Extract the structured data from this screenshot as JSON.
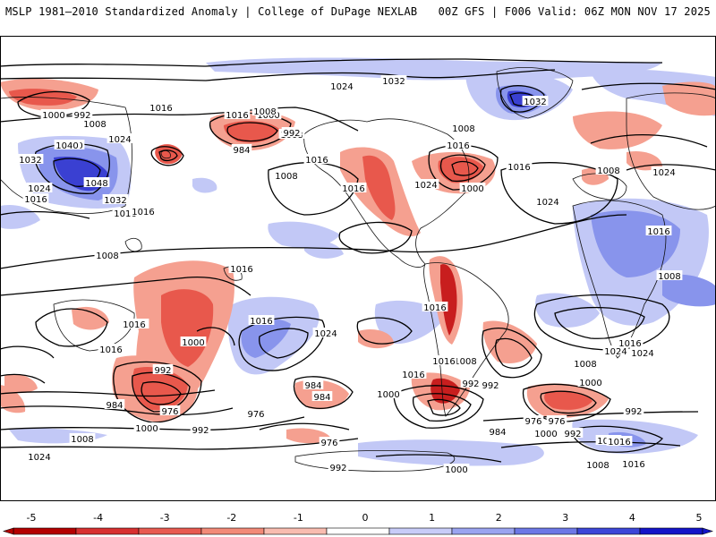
{
  "header": {
    "left": "MSLP 1981–2010 Standardized Anomaly | College of DuPage NEXLAB",
    "right": "00Z GFS | F006 Valid: 06Z MON NOV 17 2025"
  },
  "colorbar": {
    "ticks": [
      "-5",
      "-4",
      "-3",
      "-2",
      "-1",
      "0",
      "1",
      "2",
      "3",
      "4",
      "5"
    ],
    "colors": [
      "#b40000",
      "#d83030",
      "#e85a50",
      "#f28a78",
      "#f9bcb0",
      "#ffffff",
      "#c8ccf8",
      "#9aa4f0",
      "#6d78e6",
      "#3c46d8",
      "#1414c8"
    ]
  },
  "anomaly_colors": {
    "neg_strong": "#c81e1e",
    "neg_mid": "#e8584c",
    "neg_light": "#f5a090",
    "pos_light": "#c2c8f6",
    "pos_mid": "#8894ec",
    "pos_strong": "#3a40d2"
  },
  "isobar_labels": [
    "1024",
    "1032",
    "1024",
    "1032",
    "1040",
    "1032",
    "1000",
    "992",
    "1008",
    "1016",
    "1016",
    "1000",
    "1008",
    "1008",
    "992",
    "984",
    "1016",
    "1008",
    "1016",
    "1024",
    "1008",
    "1016",
    "1000",
    "1008",
    "1024",
    "1016",
    "1016",
    "1040",
    "1032",
    "1024",
    "1048",
    "1024",
    "1032",
    "1016",
    "1016",
    "1008",
    "1008",
    "1016",
    "1016",
    "1008",
    "1000",
    "992",
    "984",
    "976",
    "1024",
    "1016",
    "1016",
    "1008",
    "1000",
    "992",
    "984",
    "1000",
    "992",
    "976",
    "1008",
    "1024",
    "1016",
    "1008",
    "1000",
    "992",
    "992",
    "984",
    "976",
    "984",
    "976",
    "1000",
    "992",
    "1016",
    "1016",
    "1024",
    "1016",
    "1008",
    "1000",
    "976",
    "992",
    "1008",
    "1016",
    "1016",
    "1024",
    "1016",
    "1016",
    "1008",
    "1008",
    "1024"
  ]
}
